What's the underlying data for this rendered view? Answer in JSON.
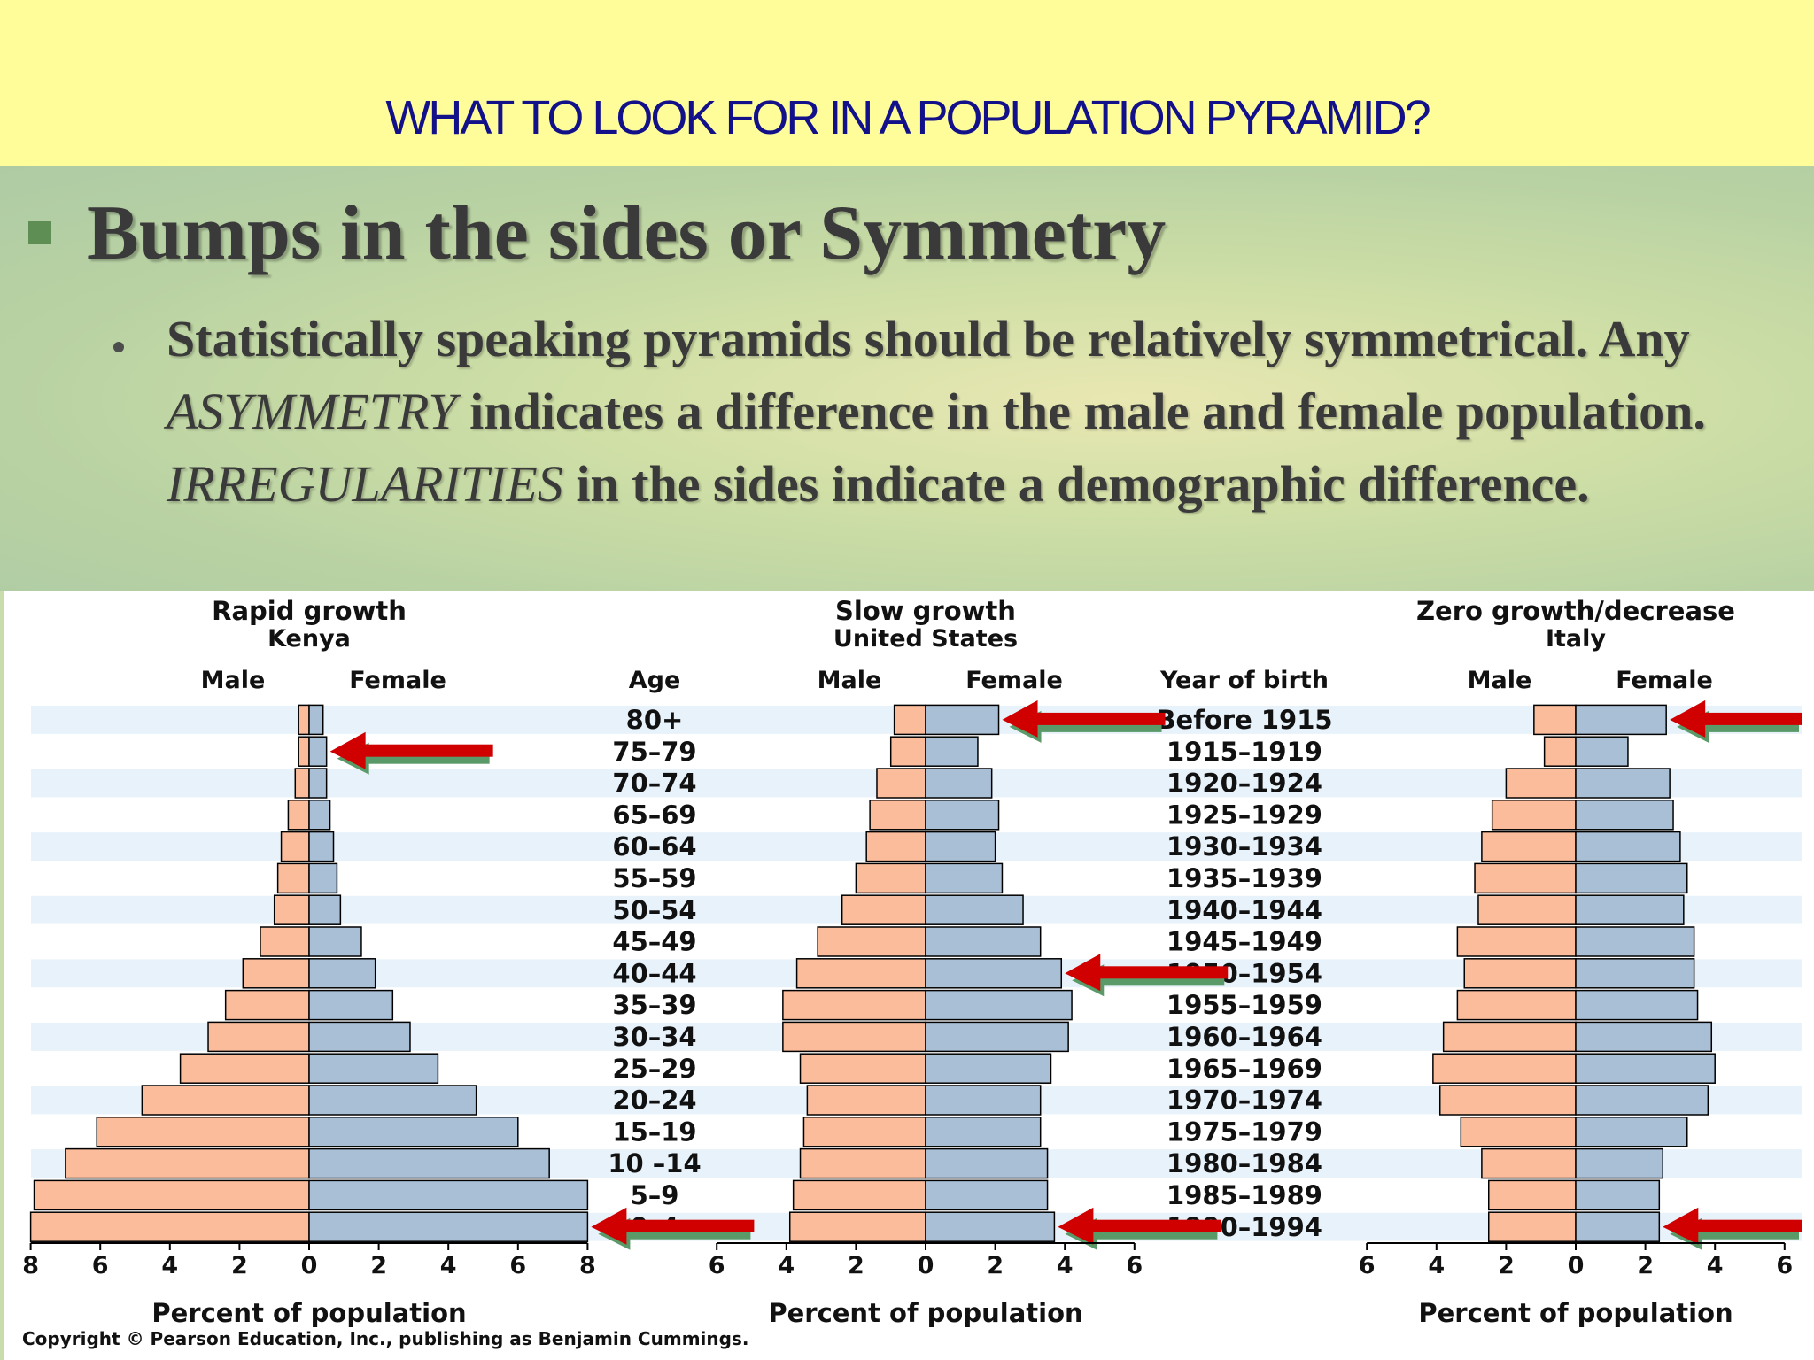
{
  "slide": {
    "title": "WHAT TO LOOK FOR IN A POPULATION PYRAMID?",
    "heading": "Bumps in the sides or Symmetry",
    "body_parts": [
      "Statistically speaking pyramids should be relatively symmetrical.  Any ",
      "ASYMMETRY",
      " indicates a difference in the male and female population.  ",
      "IRREGULARITIES",
      " in the sides indicate a demographic difference."
    ],
    "colors": {
      "title": "#13118a",
      "title_band": "#fefd9a",
      "text": "#3a3a3a",
      "bullet": "#5f8e55"
    }
  },
  "figure": {
    "age_header": "Age",
    "year_header": "Year of birth",
    "x_axis_label": "Percent of population",
    "male_label": "Male",
    "female_label": "Female",
    "copyright": "Copyright © Pearson Education, Inc., publishing as Benjamin Cummings.",
    "ages": [
      "80+",
      "75–79",
      "70–74",
      "65–69",
      "60–64",
      "55–59",
      "50–54",
      "45–49",
      "40–44",
      "35–39",
      "30–34",
      "25–29",
      "20–24",
      "15–19",
      "10 –14",
      "5–9",
      "0–4"
    ],
    "years": [
      "Before 1915",
      "1915–1919",
      "1920–1924",
      "1925–1929",
      "1930–1934",
      "1935–1939",
      "1940–1944",
      "1945–1949",
      "1950–1954",
      "1955–1959",
      "1960–1964",
      "1965–1969",
      "1970–1974",
      "1975–1979",
      "1980–1984",
      "1985–1989",
      "1990–1994"
    ],
    "colors": {
      "male": "#fbbc9c",
      "female": "#a9bfd6",
      "stripe": "#e7f2fa",
      "arrow": "#d00000",
      "arrow_shadow": "#5a9a68"
    }
  },
  "chart_data": [
    {
      "type": "bar",
      "title": "Rapid growth",
      "subtitle": "Kenya",
      "xlabel": "Percent of population",
      "ylabel": "Age",
      "xlim": [
        -8,
        8
      ],
      "xticks": [
        "8",
        "6",
        "4",
        "2",
        "0",
        "2",
        "4",
        "6",
        "8"
      ],
      "categories": [
        "80+",
        "75–79",
        "70–74",
        "65–69",
        "60–64",
        "55–59",
        "50–54",
        "45–49",
        "40–44",
        "35–39",
        "30–34",
        "25–29",
        "20–24",
        "15–19",
        "10 –14",
        "5–9",
        "0–4"
      ],
      "series": [
        {
          "name": "Male",
          "values": [
            0.3,
            0.3,
            0.4,
            0.6,
            0.8,
            0.9,
            1.0,
            1.4,
            1.9,
            2.4,
            2.9,
            3.7,
            4.8,
            6.1,
            7.0,
            7.9,
            8.0
          ]
        },
        {
          "name": "Female",
          "values": [
            0.4,
            0.5,
            0.5,
            0.6,
            0.7,
            0.8,
            0.9,
            1.5,
            1.9,
            2.4,
            2.9,
            3.7,
            4.8,
            6.0,
            6.9,
            8.0,
            8.0
          ]
        }
      ],
      "arrows_at": [
        "75–79",
        "0–4"
      ]
    },
    {
      "type": "bar",
      "title": "Slow growth",
      "subtitle": "United States",
      "xlabel": "Percent of population",
      "ylabel": "Age",
      "xlim": [
        -6,
        6
      ],
      "xticks": [
        "6",
        "4",
        "2",
        "0",
        "2",
        "4",
        "6"
      ],
      "categories": [
        "80+",
        "75–79",
        "70–74",
        "65–69",
        "60–64",
        "55–59",
        "50–54",
        "45–49",
        "40–44",
        "35–39",
        "30–34",
        "25–29",
        "20–24",
        "15–19",
        "10 –14",
        "5–9",
        "0–4"
      ],
      "series": [
        {
          "name": "Male",
          "values": [
            0.9,
            1.0,
            1.4,
            1.6,
            1.7,
            2.0,
            2.4,
            3.1,
            3.7,
            4.1,
            4.1,
            3.6,
            3.4,
            3.5,
            3.6,
            3.8,
            3.9
          ]
        },
        {
          "name": "Female",
          "values": [
            2.1,
            1.5,
            1.9,
            2.1,
            2.0,
            2.2,
            2.8,
            3.3,
            3.9,
            4.2,
            4.1,
            3.6,
            3.3,
            3.3,
            3.5,
            3.5,
            3.7
          ]
        }
      ],
      "arrows_at": [
        "80+",
        "40–44",
        "0–4"
      ]
    },
    {
      "type": "bar",
      "title": "Zero growth/decrease",
      "subtitle": "Italy",
      "xlabel": "Percent of population",
      "ylabel": "Age",
      "xlim": [
        -6,
        6
      ],
      "xticks": [
        "6",
        "4",
        "2",
        "0",
        "2",
        "4",
        "6"
      ],
      "categories": [
        "80+",
        "75–79",
        "70–74",
        "65–69",
        "60–64",
        "55–59",
        "50–54",
        "45–49",
        "40–44",
        "35–39",
        "30–34",
        "25–29",
        "20–24",
        "15–19",
        "10 –14",
        "5–9",
        "0–4"
      ],
      "series": [
        {
          "name": "Male",
          "values": [
            1.2,
            0.9,
            2.0,
            2.4,
            2.7,
            2.9,
            2.8,
            3.4,
            3.2,
            3.4,
            3.8,
            4.1,
            3.9,
            3.3,
            2.7,
            2.5,
            2.5
          ]
        },
        {
          "name": "Female",
          "values": [
            2.6,
            1.5,
            2.7,
            2.8,
            3.0,
            3.2,
            3.1,
            3.4,
            3.4,
            3.5,
            3.9,
            4.0,
            3.8,
            3.2,
            2.5,
            2.4,
            2.4
          ]
        }
      ],
      "arrows_at": [
        "80+",
        "0–4"
      ]
    }
  ]
}
